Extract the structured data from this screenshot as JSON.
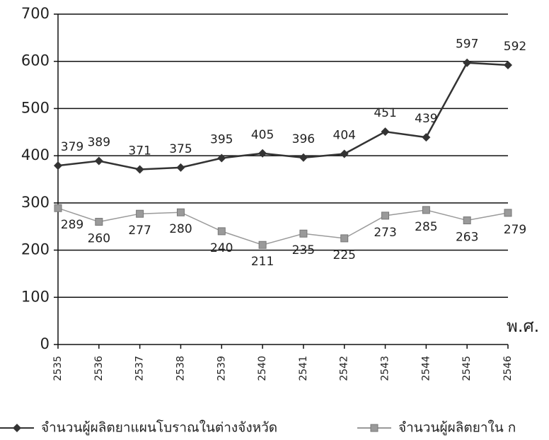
{
  "chart_data": {
    "type": "line",
    "categories": [
      "2535",
      "2536",
      "2537",
      "2538",
      "2539",
      "2540",
      "2541",
      "2542",
      "2543",
      "2544",
      "2545",
      "2546"
    ],
    "series": [
      {
        "name": "จำนวนผู้ผลิตยาแผนโบราณในต่างจังหวัด",
        "color": "#333333",
        "marker": "diamond",
        "values": [
          379,
          389,
          371,
          375,
          395,
          405,
          396,
          404,
          451,
          439,
          597,
          592
        ]
      },
      {
        "name": "จำนวนผู้ผลิตยาใน ก",
        "color": "#9a9a9a",
        "marker": "square",
        "values": [
          289,
          260,
          277,
          280,
          240,
          211,
          235,
          225,
          273,
          285,
          263,
          279
        ]
      }
    ],
    "xlabel": "พ.ศ.",
    "ylim": [
      0,
      700
    ],
    "yticks": [
      0,
      100,
      200,
      300,
      400,
      500,
      600,
      700
    ],
    "grid": true
  }
}
